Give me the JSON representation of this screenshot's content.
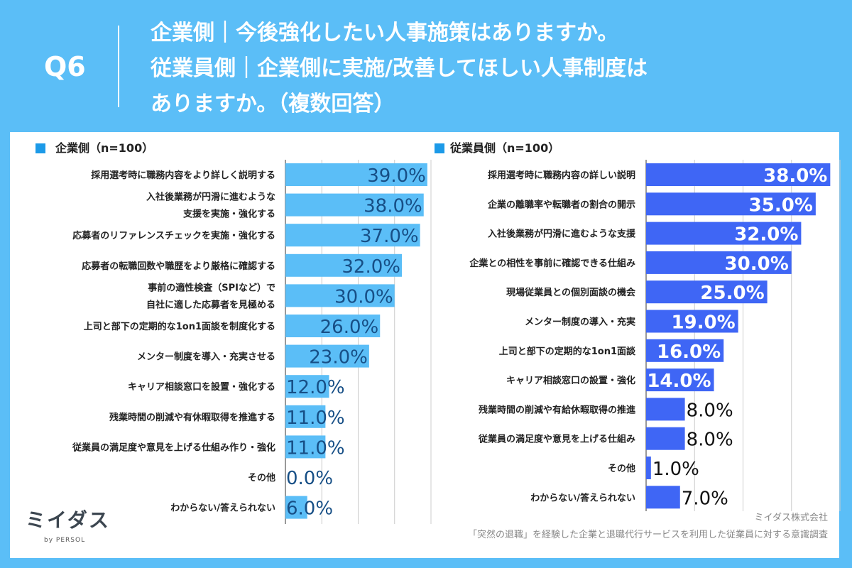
{
  "header": {
    "q_label": "Q6",
    "title_lines": [
      "企業側｜今後強化したい人事施策はありますか。",
      "従業員側｜企業側に実施/改善してほしい人事制度は",
      "ありますか。（複数回答）"
    ]
  },
  "footer": {
    "logo": "ミイダス",
    "logo_sub": "by PERSOL",
    "company": "ミイダス株式会社",
    "survey": "「突然の退職」を経験した企業と退職代行サービスを利用した従業員に対する意識調査"
  },
  "colors": {
    "background": "#5bbef7",
    "company_bar": "#5bbef7",
    "employee_bar": "#3f66f5",
    "legend_square": "#1c9ae8"
  },
  "chart_data": [
    {
      "type": "bar",
      "orientation": "horizontal",
      "legend": "企業側（n=100）",
      "xlim": [
        0,
        40
      ],
      "grid": true,
      "categories": [
        [
          "採用選考時に職務内容をより詳しく説明する"
        ],
        [
          "入社後業務が円滑に進むような",
          "支援を実施・強化する"
        ],
        [
          "応募者のリファレンスチェックを実施・強化する"
        ],
        [
          "応募者の転職回数や職歴をより厳格に確認する"
        ],
        [
          "事前の適性検査（SPIなど）で",
          "自社に適した応募者を見極める"
        ],
        [
          "上司と部下の定期的な1on1面談を制度化する"
        ],
        [
          "メンター制度を導入・充実させる"
        ],
        [
          "キャリア相談窓口を設置・強化する"
        ],
        [
          "残業時間の削減や有休暇取得を推進する"
        ],
        [
          "従業員の満足度や意見を上げる仕組み作り・強化"
        ],
        [
          "その他"
        ],
        [
          "わからない/答えられない"
        ]
      ],
      "values": [
        39.0,
        38.0,
        37.0,
        32.0,
        30.0,
        26.0,
        23.0,
        12.0,
        11.0,
        11.0,
        0.0,
        6.0
      ],
      "labels": [
        "39.0%",
        "38.0%",
        "37.0%",
        "32.0%",
        "30.0%",
        "26.0%",
        "23.0%",
        "12.0%",
        "11.0%",
        "11.0%",
        "0.0%",
        "6.0%"
      ]
    },
    {
      "type": "bar",
      "orientation": "horizontal",
      "legend": "従業員側（n=100）",
      "xlim": [
        0,
        40
      ],
      "grid": true,
      "categories": [
        [
          "採用選考時に職務内容の詳しい説明"
        ],
        [
          "企業の離職率や転職者の割合の開示"
        ],
        [
          "入社後業務が円滑に進むような支援"
        ],
        [
          "企業との相性を事前に確認できる仕組み"
        ],
        [
          "現場従業員との個別面談の機会"
        ],
        [
          "メンター制度の導入・充実"
        ],
        [
          "上司と部下の定期的な1on1面談"
        ],
        [
          "キャリア相談窓口の設置・強化"
        ],
        [
          "残業時間の削減や有給休暇取得の推進"
        ],
        [
          "従業員の満足度や意見を上げる仕組み"
        ],
        [
          "その他"
        ],
        [
          "わからない/答えられない"
        ]
      ],
      "values": [
        38.0,
        35.0,
        32.0,
        30.0,
        25.0,
        19.0,
        16.0,
        14.0,
        8.0,
        8.0,
        1.0,
        7.0
      ],
      "labels": [
        "38.0%",
        "35.0%",
        "32.0%",
        "30.0%",
        "25.0%",
        "19.0%",
        "16.0%",
        "14.0%",
        "8.0%",
        "8.0%",
        "1.0%",
        "7.0%"
      ]
    }
  ]
}
